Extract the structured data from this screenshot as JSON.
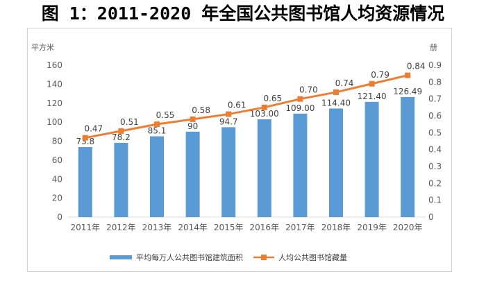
{
  "page": {
    "title": "图 1：2011-2020 年全国公共图书馆人均资源情况"
  },
  "chart_data": {
    "type": "bar",
    "categories": [
      "2011年",
      "2012年",
      "2013年",
      "2014年",
      "2015年",
      "2016年",
      "2017年",
      "2018年",
      "2019年",
      "2020年"
    ],
    "series": [
      {
        "name": "平均每万人公共图书馆建筑面积",
        "type": "bar",
        "axis": "left",
        "color": "#5b9bd5",
        "values": [
          73.8,
          78.2,
          85.1,
          90,
          94.7,
          103.0,
          109.0,
          114.4,
          121.4,
          126.49
        ],
        "labels": [
          "73.8",
          "78.2",
          "85.1",
          "90",
          "94.7",
          "103.00",
          "109.00",
          "114.40",
          "121.40",
          "126.49"
        ]
      },
      {
        "name": "人均公共图书馆藏量",
        "type": "line",
        "axis": "right",
        "color": "#ed7d31",
        "values": [
          0.47,
          0.51,
          0.55,
          0.58,
          0.61,
          0.65,
          0.7,
          0.74,
          0.79,
          0.84
        ],
        "labels": [
          "0.47",
          "0.51",
          "0.55",
          "0.58",
          "0.61",
          "0.65",
          "0.70",
          "0.74",
          "0.79",
          "0.84"
        ]
      }
    ],
    "y_left": {
      "label": "平方米",
      "ylim": [
        0,
        160
      ],
      "ticks": [
        "0",
        "20",
        "40",
        "60",
        "80",
        "100",
        "120",
        "140",
        "160"
      ],
      "tick_values": [
        0,
        20,
        40,
        60,
        80,
        100,
        120,
        140,
        160
      ]
    },
    "y_right": {
      "label": "册",
      "ylim": [
        0,
        0.9
      ],
      "ticks": [
        "0",
        "0.1",
        "0.2",
        "0.3",
        "0.4",
        "0.5",
        "0.6",
        "0.7",
        "0.8",
        "0.9"
      ],
      "tick_values": [
        0,
        0.1,
        0.2,
        0.3,
        0.4,
        0.5,
        0.6,
        0.7,
        0.8,
        0.9
      ]
    },
    "grid": false,
    "legend": "bottom"
  }
}
